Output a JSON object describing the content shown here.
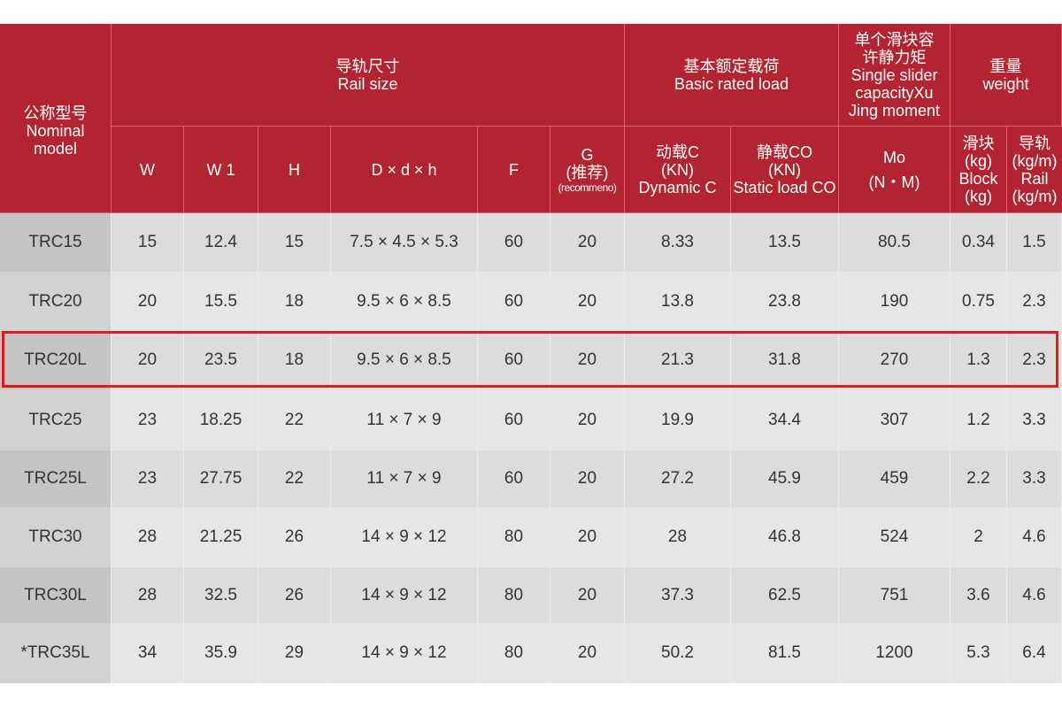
{
  "header": {
    "model": [
      "公称型号",
      "Nominal",
      "model"
    ],
    "rail_size": [
      "导轨尺寸",
      "Rail size"
    ],
    "rated_load": [
      "基本额定载荷",
      "Basic rated load"
    ],
    "moment": [
      "单个滑块容",
      "许静力矩",
      "Single slider",
      "capacityXu",
      "Jing moment"
    ],
    "weight": [
      "重量",
      "weight"
    ],
    "sub": {
      "W": "W",
      "W1": "W 1",
      "H": "H",
      "Ddh": "D × d × h",
      "F": "F",
      "G": [
        "G",
        "(推荐)",
        "(recommeno)"
      ],
      "dynamic": [
        "动载C",
        "(KN)",
        "Dynamic C"
      ],
      "static": [
        "静载CO",
        "(KN)",
        "Static load CO"
      ],
      "mo": [
        "Mo",
        "(N・M)"
      ],
      "block": [
        "滑块",
        "(kg)",
        "Block",
        "(kg)"
      ],
      "rail": [
        "导轨",
        "(kg/m)",
        "Rail",
        "(kg/m)"
      ]
    }
  },
  "rows": [
    [
      "TRC15",
      "15",
      "12.4",
      "15",
      "7.5 × 4.5 × 5.3",
      "60",
      "20",
      "8.33",
      "13.5",
      "80.5",
      "0.34",
      "1.5"
    ],
    [
      "TRC20",
      "20",
      "15.5",
      "18",
      "9.5 × 6 × 8.5",
      "60",
      "20",
      "13.8",
      "23.8",
      "190",
      "0.75",
      "2.3"
    ],
    [
      "TRC20L",
      "20",
      "23.5",
      "18",
      "9.5 × 6 × 8.5",
      "60",
      "20",
      "21.3",
      "31.8",
      "270",
      "1.3",
      "2.3"
    ],
    [
      "TRC25",
      "23",
      "18.25",
      "22",
      "11 × 7 × 9",
      "60",
      "20",
      "19.9",
      "34.4",
      "307",
      "1.2",
      "3.3"
    ],
    [
      "TRC25L",
      "23",
      "27.75",
      "22",
      "11 × 7 × 9",
      "60",
      "20",
      "27.2",
      "45.9",
      "459",
      "2.2",
      "3.3"
    ],
    [
      "TRC30",
      "28",
      "21.25",
      "26",
      "14 × 9 × 12",
      "80",
      "20",
      "28",
      "46.8",
      "524",
      "2",
      "4.6"
    ],
    [
      "TRC30L",
      "28",
      "32.5",
      "26",
      "14 × 9 × 12",
      "80",
      "20",
      "37.3",
      "62.5",
      "751",
      "3.6",
      "4.6"
    ],
    [
      "*TRC35L",
      "34",
      "35.9",
      "29",
      "14 × 9 × 12",
      "80",
      "20",
      "50.2",
      "81.5",
      "1200",
      "5.3",
      "6.4"
    ]
  ],
  "highlighted_row": "TRC20L",
  "colors": {
    "header_bg": "#b42430",
    "highlight": "#e01b1b"
  }
}
